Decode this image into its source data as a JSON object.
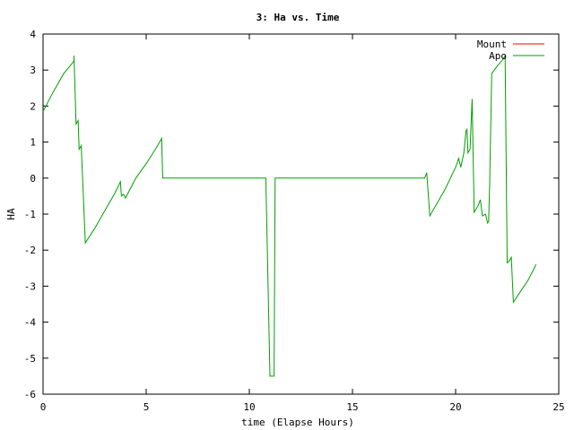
{
  "chart_data": {
    "type": "line",
    "title": "3: Ha vs. Time",
    "xlabel": "time (Elapse Hours)",
    "ylabel": "HA",
    "xlim": [
      0,
      25
    ],
    "ylim": [
      -6,
      4
    ],
    "xticks": [
      "0",
      "5",
      "10",
      "15",
      "20",
      "25"
    ],
    "yticks": [
      "4",
      "3",
      "2",
      "1",
      "0",
      "-1",
      "-2",
      "-3",
      "-4",
      "-5",
      "-6"
    ],
    "grid": false,
    "legend_position": "top-right",
    "series": [
      {
        "name": "Mount",
        "color": "#ff0000",
        "points": []
      },
      {
        "name": "Apo",
        "color": "#00a000",
        "points": [
          [
            0.0,
            1.85
          ],
          [
            0.5,
            2.4
          ],
          [
            1.0,
            2.9
          ],
          [
            1.5,
            3.25
          ],
          [
            1.5,
            3.4
          ],
          [
            1.6,
            1.5
          ],
          [
            1.7,
            1.6
          ],
          [
            1.75,
            0.8
          ],
          [
            1.85,
            0.9
          ],
          [
            2.05,
            -1.8
          ],
          [
            2.5,
            -1.4
          ],
          [
            3.0,
            -0.9
          ],
          [
            3.5,
            -0.4
          ],
          [
            3.75,
            -0.1
          ],
          [
            3.8,
            -0.5
          ],
          [
            3.9,
            -0.45
          ],
          [
            4.0,
            -0.55
          ],
          [
            4.5,
            0.0
          ],
          [
            5.0,
            0.4
          ],
          [
            5.5,
            0.85
          ],
          [
            5.7,
            1.05
          ],
          [
            5.75,
            1.1
          ],
          [
            5.8,
            0.0
          ],
          [
            10.8,
            0.0
          ],
          [
            11.0,
            -5.5
          ],
          [
            11.2,
            -5.5
          ],
          [
            11.25,
            0.0
          ],
          [
            18.5,
            0.0
          ],
          [
            18.6,
            0.15
          ],
          [
            18.75,
            -1.05
          ],
          [
            19.5,
            -0.3
          ],
          [
            20.0,
            0.3
          ],
          [
            20.15,
            0.55
          ],
          [
            20.25,
            0.3
          ],
          [
            20.4,
            0.7
          ],
          [
            20.5,
            1.3
          ],
          [
            20.55,
            1.35
          ],
          [
            20.6,
            0.7
          ],
          [
            20.7,
            0.8
          ],
          [
            20.75,
            1.5
          ],
          [
            20.8,
            2.2
          ],
          [
            20.9,
            -0.95
          ],
          [
            21.1,
            -0.75
          ],
          [
            21.2,
            -0.6
          ],
          [
            21.3,
            -1.05
          ],
          [
            21.45,
            -1.0
          ],
          [
            21.55,
            -1.25
          ],
          [
            21.6,
            -1.2
          ],
          [
            21.65,
            -0.2
          ],
          [
            21.75,
            2.9
          ],
          [
            22.0,
            3.1
          ],
          [
            22.3,
            3.3
          ],
          [
            22.4,
            3.4
          ],
          [
            22.5,
            -2.35
          ],
          [
            22.6,
            -2.3
          ],
          [
            22.7,
            -2.2
          ],
          [
            22.8,
            -3.45
          ],
          [
            23.2,
            -3.1
          ],
          [
            23.5,
            -2.85
          ],
          [
            23.9,
            -2.4
          ]
        ]
      }
    ]
  }
}
